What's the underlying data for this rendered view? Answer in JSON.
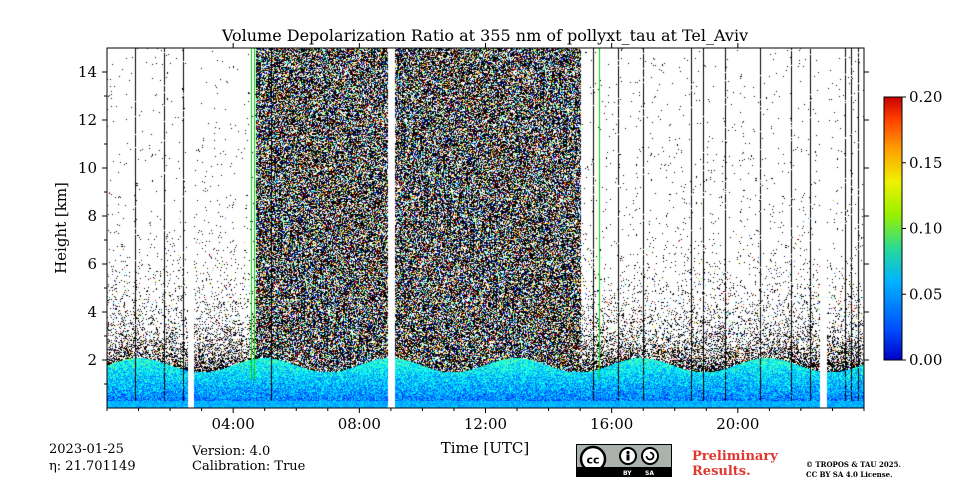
{
  "chart_data": {
    "type": "heatmap",
    "title": "Volume Depolarization Ratio at 355 nm of pollyxt_tau at Tel_Aviv",
    "xlabel": "Time [UTC]",
    "ylabel": "Height [km]",
    "x_ticks": [
      "04:00",
      "08:00",
      "12:00",
      "16:00",
      "20:00"
    ],
    "x_tick_hours": [
      4,
      8,
      12,
      16,
      20
    ],
    "xlim_hours": [
      0,
      24
    ],
    "y_ticks": [
      2,
      4,
      6,
      8,
      10,
      12,
      14
    ],
    "ylim": [
      0,
      15
    ],
    "colorbar": {
      "ticks": [
        "0.00",
        "0.05",
        "0.10",
        "0.15",
        "0.20"
      ],
      "tick_values": [
        0,
        0.05,
        0.1,
        0.15,
        0.2
      ],
      "range": [
        0,
        0.2
      ],
      "colormap": "jet"
    },
    "data_gaps_hours": [
      [
        2.55,
        2.75
      ],
      [
        8.9,
        9.1
      ],
      [
        22.6,
        22.8
      ]
    ],
    "noisy_period_hours": [
      4.7,
      15.0
    ],
    "boundary_layer_top_km": 2.0
  },
  "footer": {
    "date": "2023-01-25",
    "eta": "η: 21.701149",
    "version": "Version: 4.0",
    "calibration": "Calibration: True",
    "preliminary_line1": "Preliminary",
    "preliminary_line2": "Results.",
    "license_line1": "© TROPOS & TAU 2025.",
    "license_line2": "CC BY SA 4.0 License.",
    "cc_by": "BY",
    "cc_sa": "SA",
    "cc_logo": "cc"
  },
  "colors": {
    "preliminary": "#e0382f",
    "badge_bg": "#aab2ab"
  }
}
